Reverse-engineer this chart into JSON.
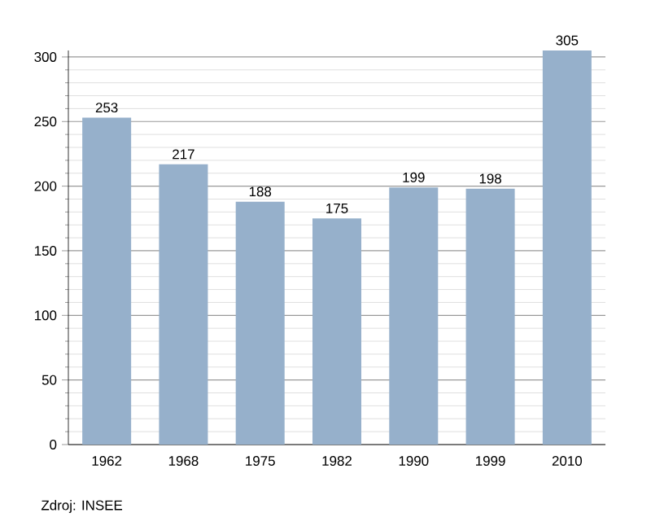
{
  "chart_data": {
    "type": "bar",
    "categories": [
      "1962",
      "1968",
      "1975",
      "1982",
      "1990",
      "1999",
      "2010"
    ],
    "values": [
      253,
      217,
      188,
      175,
      199,
      198,
      305
    ],
    "color": "#96b0cb",
    "ylim": [
      0,
      305
    ],
    "yticks": [
      0,
      50,
      100,
      150,
      200,
      250,
      300
    ],
    "grid": "y",
    "data_labels": true,
    "annotations": [
      "Zdroj: INSEE"
    ]
  }
}
